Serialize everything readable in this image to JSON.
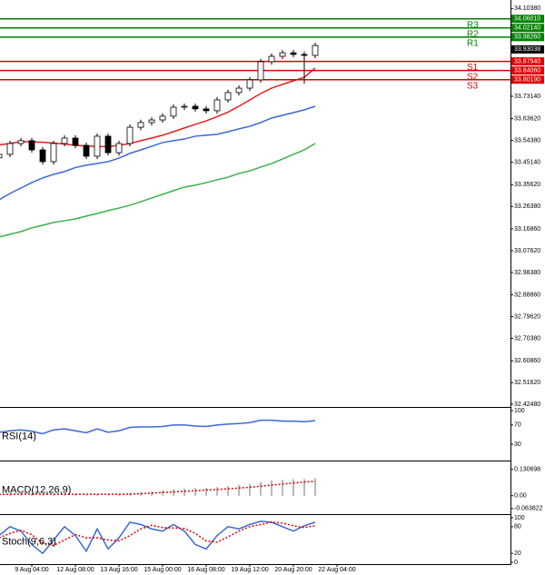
{
  "chart_data": [
    {
      "type": "candlestick",
      "categories": [
        null,
        null,
        null,
        "9 Aug 04:00",
        null,
        null,
        null,
        "12 Aug 08:00",
        null,
        null,
        null,
        "13 Aug 16:00",
        null,
        null,
        null,
        "15 Aug 00:00",
        null,
        null,
        null,
        "16 Aug 08:00",
        null,
        null,
        null,
        "19 Aug 12:00",
        null,
        null,
        null,
        "20 Aug 20:00",
        null,
        null,
        null,
        "22 Aug 04:00"
      ],
      "open": [
        33.47,
        33.485,
        33.531,
        33.543,
        33.504,
        33.454,
        33.531,
        33.554,
        33.523,
        33.477,
        33.562,
        33.492,
        33.531,
        33.6,
        33.62,
        33.631,
        33.647,
        33.685,
        33.689,
        33.678,
        33.67,
        33.716,
        33.747,
        33.766,
        33.801,
        33.878,
        33.901,
        33.916,
        33.909,
        33.905,
        null,
        null
      ],
      "high": [
        33.497,
        33.543,
        33.555,
        33.555,
        33.516,
        33.543,
        33.566,
        33.566,
        33.535,
        33.574,
        33.574,
        33.543,
        33.612,
        33.632,
        33.643,
        33.659,
        33.697,
        33.701,
        33.701,
        33.69,
        33.728,
        33.759,
        33.778,
        33.813,
        33.89,
        33.913,
        33.928,
        33.928,
        33.921,
        33.959,
        null,
        null
      ],
      "low": [
        33.458,
        33.473,
        33.519,
        33.492,
        33.442,
        33.442,
        33.519,
        33.511,
        33.465,
        33.465,
        33.48,
        33.48,
        33.519,
        33.588,
        33.608,
        33.619,
        33.635,
        33.673,
        33.666,
        33.658,
        33.658,
        33.704,
        33.735,
        33.754,
        33.789,
        33.866,
        33.889,
        33.897,
        33.785,
        33.893,
        null,
        null
      ],
      "close": [
        33.485,
        33.531,
        33.543,
        33.504,
        33.454,
        33.531,
        33.554,
        33.523,
        33.477,
        33.562,
        33.492,
        33.531,
        33.6,
        33.62,
        33.631,
        33.647,
        33.685,
        33.689,
        33.678,
        33.67,
        33.716,
        33.747,
        33.766,
        33.801,
        33.878,
        33.901,
        33.916,
        33.909,
        33.905,
        33.947,
        null,
        null
      ],
      "up_color": "#ffffff",
      "down_color": "#000000",
      "lines": [
        {
          "color": "#e0201c",
          "values": [
            33.525,
            33.531,
            33.539,
            33.538,
            33.536,
            33.533,
            33.529,
            33.523,
            33.521,
            33.518,
            33.518,
            33.523,
            33.531,
            33.543,
            33.554,
            33.566,
            33.581,
            33.597,
            33.612,
            33.627,
            33.645,
            33.664,
            33.689,
            33.716,
            33.743,
            33.766,
            33.782,
            33.797,
            33.812,
            33.851,
            null,
            null
          ]
        },
        {
          "color": "#3a68d8",
          "values": [
            33.292,
            33.319,
            33.342,
            33.365,
            33.385,
            33.4,
            33.412,
            33.429,
            33.439,
            33.446,
            33.454,
            33.469,
            33.489,
            33.504,
            33.519,
            33.535,
            33.543,
            33.55,
            33.562,
            33.566,
            33.57,
            33.581,
            33.593,
            33.604,
            33.62,
            33.639,
            33.651,
            33.662,
            33.674,
            33.689,
            null,
            null
          ]
        },
        {
          "color": "#3cb04c",
          "values": [
            33.134,
            33.146,
            33.157,
            33.173,
            33.184,
            33.196,
            33.203,
            33.211,
            33.223,
            33.234,
            33.246,
            33.257,
            33.269,
            33.284,
            33.3,
            33.315,
            33.331,
            33.346,
            33.354,
            33.365,
            33.377,
            33.388,
            33.404,
            33.415,
            33.431,
            33.446,
            33.465,
            33.485,
            33.504,
            33.531,
            null,
            null
          ]
        }
      ],
      "levels": [
        {
          "name": "R3",
          "price": {
            "value": 34.0601,
            "label": "34.06010"
          },
          "color": "#008000"
        },
        {
          "name": "R2",
          "price": {
            "value": 34.0214,
            "label": "34.02140"
          },
          "color": "#008000"
        },
        {
          "name": "R1",
          "price": {
            "value": 33.9826,
            "label": "33.98260"
          },
          "color": "#008000"
        },
        {
          "name": "S1",
          "price": {
            "value": 33.8794,
            "label": "33.87940"
          },
          "color": "#e00000"
        },
        {
          "name": "S2",
          "price": {
            "value": 33.8406,
            "label": "33.84060"
          },
          "color": "#e00000"
        },
        {
          "name": "S3",
          "price": {
            "value": 33.8019,
            "label": "33.80190"
          },
          "color": "#e00000"
        }
      ],
      "last_price": 33.93038,
      "ylim": [
        32.413,
        34.14
      ],
      "yticks": [
        {
          "value": 34.1038,
          "label": "34.10380"
        },
        {
          "value": 33.7314,
          "label": "33.73140"
        },
        {
          "value": 33.6362,
          "label": "33.63620"
        },
        {
          "value": 33.5438,
          "label": "33.54380"
        },
        {
          "value": 33.4514,
          "label": "33.45140"
        },
        {
          "value": 33.3562,
          "label": "33.35620"
        },
        {
          "value": 33.2638,
          "label": "33.26380"
        },
        {
          "value": 33.1686,
          "label": "33.16860"
        },
        {
          "value": 33.0762,
          "label": "33.07620"
        },
        {
          "value": 32.9838,
          "label": "32.98380"
        },
        {
          "value": 32.8886,
          "label": "32.88860"
        },
        {
          "value": 32.7962,
          "label": "32.79620"
        },
        {
          "value": 32.7038,
          "label": "32.70380"
        },
        {
          "value": 32.6086,
          "label": "32.60860"
        },
        {
          "value": 32.5162,
          "label": "32.51620"
        },
        {
          "value": 32.4248,
          "label": "32.42480"
        }
      ]
    },
    {
      "type": "line",
      "title": "RSI(14)",
      "color": "#3a68d8",
      "values": [
        55,
        58,
        60,
        57,
        52,
        60,
        62,
        58,
        54,
        62,
        55,
        58,
        65,
        66,
        66,
        67,
        70,
        70,
        68,
        67,
        70,
        72,
        73,
        75,
        80,
        80,
        78,
        78,
        77,
        79
      ],
      "ylim": [
        0,
        100
      ],
      "yticks": [
        100,
        70,
        30
      ]
    },
    {
      "type": "macd",
      "title": "MACD(12,26,9)",
      "color": "#a0a0a0",
      "signal_color": "#e00000",
      "values": [
        0.005,
        0.008,
        0.01,
        0.009,
        0.004,
        0.006,
        0.009,
        0.008,
        0.004,
        0.008,
        0.005,
        0.007,
        0.013,
        0.018,
        0.022,
        0.026,
        0.032,
        0.036,
        0.038,
        0.039,
        0.043,
        0.048,
        0.053,
        0.058,
        0.068,
        0.075,
        0.08,
        0.082,
        0.083,
        0.087
      ],
      "signal": [
        0.006,
        0.007,
        0.008,
        0.008,
        0.007,
        0.007,
        0.007,
        0.007,
        0.007,
        0.007,
        0.007,
        0.007,
        0.008,
        0.01,
        0.013,
        0.016,
        0.019,
        0.022,
        0.025,
        0.028,
        0.031,
        0.034,
        0.038,
        0.042,
        0.047,
        0.053,
        0.058,
        0.063,
        0.068,
        0.072
      ],
      "ylim": [
        -0.0871,
        0.1612
      ],
      "yticks": [
        0.130698,
        {
          "value": 0,
          "label": "0.00"
        },
        -0.063822
      ]
    },
    {
      "type": "stoch",
      "title": "Stoch(9,6,3)",
      "color": "#3a68d8",
      "signal_color": "#e00000",
      "values": [
        60,
        80,
        70,
        40,
        20,
        50,
        80,
        60,
        25,
        75,
        30,
        55,
        90,
        85,
        75,
        70,
        85,
        70,
        40,
        30,
        60,
        80,
        75,
        85,
        92,
        90,
        80,
        70,
        82,
        90
      ],
      "signal": [
        55,
        65,
        72,
        62,
        43,
        38,
        50,
        62,
        55,
        55,
        50,
        48,
        60,
        75,
        83,
        78,
        77,
        76,
        65,
        48,
        45,
        57,
        70,
        80,
        85,
        90,
        88,
        82,
        78,
        82
      ],
      "ylim": [
        0,
        100
      ],
      "yticks": [
        100,
        80,
        20,
        0
      ]
    }
  ]
}
